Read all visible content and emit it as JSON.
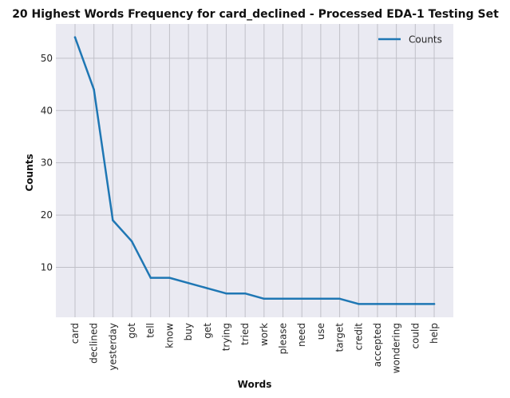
{
  "chart_data": {
    "type": "line",
    "title": "20 Highest Words Frequency for card_declined - Processed EDA-1 Testing Set",
    "xlabel": "Words",
    "ylabel": "Counts",
    "categories": [
      "card",
      "declined",
      "yesterday",
      "got",
      "tell",
      "know",
      "buy",
      "get",
      "trying",
      "tried",
      "work",
      "please",
      "need",
      "use",
      "target",
      "credit",
      "accepted",
      "wondering",
      "could",
      "help"
    ],
    "series": [
      {
        "name": "Counts",
        "values": [
          54,
          44,
          19,
          15,
          8,
          8,
          7,
          6,
          5,
          5,
          4,
          4,
          4,
          4,
          4,
          3,
          3,
          3,
          3,
          3
        ]
      }
    ],
    "ylim": [
      0.45,
      56.55
    ],
    "yticks": [
      10,
      20,
      30,
      40,
      50
    ],
    "grid": true,
    "legend_position": "top-right",
    "colors": {
      "line": "#1f77b4",
      "plot_background": "#eaeaf2",
      "grid": "#c0c0c8"
    }
  }
}
